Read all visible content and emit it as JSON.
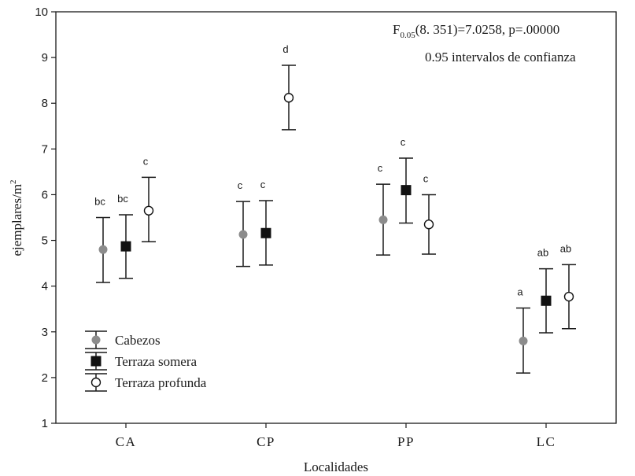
{
  "chart_data": {
    "type": "scatter",
    "xlabel": "Localidades",
    "ylabel": "ejemplares/m",
    "ylabel_sup": "2",
    "ylim": [
      1,
      10
    ],
    "yticks": [
      1,
      2,
      3,
      4,
      5,
      6,
      7,
      8,
      9,
      10
    ],
    "categories": [
      "CA",
      "CP",
      "PP",
      "LC"
    ],
    "annotation": {
      "f_base": "F",
      "f_sub": "0.05",
      "f_rest": "(8. 351)=7.0258, p=.00000",
      "ci_label": "0.95 intervalos de confianza"
    },
    "legend_position": "bottom-left",
    "series": [
      {
        "name": "Cabezos",
        "marker": "circle-filled",
        "color": "#8c8c8c",
        "values": [
          4.8,
          5.13,
          5.45,
          2.8
        ],
        "lower": [
          4.08,
          4.43,
          4.68,
          2.1
        ],
        "upper": [
          5.5,
          5.85,
          6.23,
          3.52
        ],
        "letters": [
          "bc",
          "c",
          "c",
          "a"
        ]
      },
      {
        "name": "Terraza somera",
        "marker": "square-filled",
        "color": "#111111",
        "values": [
          4.87,
          5.16,
          6.1,
          3.68
        ],
        "lower": [
          4.17,
          4.46,
          5.38,
          2.98
        ],
        "upper": [
          5.56,
          5.87,
          6.8,
          4.38
        ],
        "letters": [
          "bc",
          "c",
          "c",
          "ab"
        ]
      },
      {
        "name": "Terraza profunda",
        "marker": "circle-open",
        "color": "#111111",
        "values": [
          5.65,
          8.12,
          5.35,
          3.77
        ],
        "lower": [
          4.97,
          7.42,
          4.7,
          3.07
        ],
        "upper": [
          6.38,
          8.83,
          6.0,
          4.47
        ],
        "letters": [
          "c",
          "d",
          "c",
          "ab"
        ]
      }
    ]
  }
}
